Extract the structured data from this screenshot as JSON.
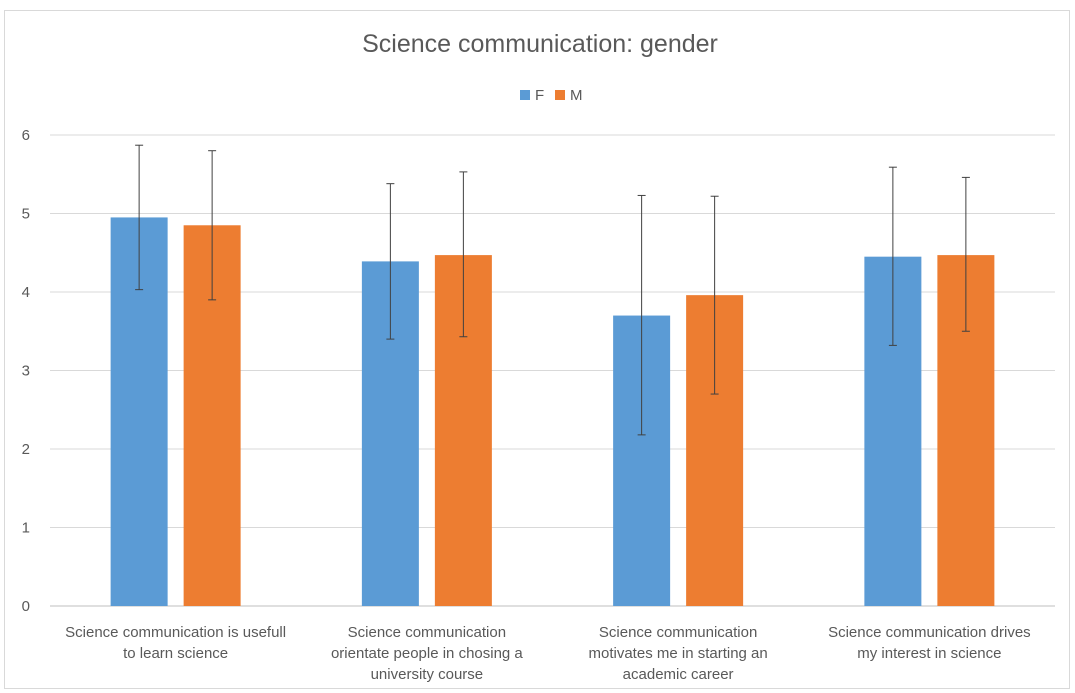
{
  "chart_data": {
    "type": "bar",
    "title": "Science communication: gender",
    "categories": [
      [
        "Science communication is usefull",
        "to learn science"
      ],
      [
        "Science communication",
        "orientate people in chosing a",
        "university course"
      ],
      [
        "Science communication",
        "motivates me in starting an",
        "academic career"
      ],
      [
        "Science communication drives",
        "my interest in science"
      ]
    ],
    "series": [
      {
        "name": "F",
        "color": "#5b9bd5",
        "values": [
          4.95,
          4.39,
          3.7,
          4.45
        ],
        "error_low": [
          4.03,
          3.4,
          2.18,
          3.32
        ],
        "error_high": [
          5.87,
          5.38,
          5.23,
          5.59
        ]
      },
      {
        "name": "M",
        "color": "#ed7d31",
        "values": [
          4.85,
          4.47,
          3.96,
          4.47
        ],
        "error_low": [
          3.9,
          3.43,
          2.7,
          3.5
        ],
        "error_high": [
          5.8,
          5.53,
          5.22,
          5.46
        ]
      }
    ],
    "ylim": [
      0,
      6
    ],
    "yticks": [
      "0",
      "1",
      "2",
      "3",
      "4",
      "5",
      "6"
    ],
    "grid": true,
    "legend": "top-center"
  }
}
